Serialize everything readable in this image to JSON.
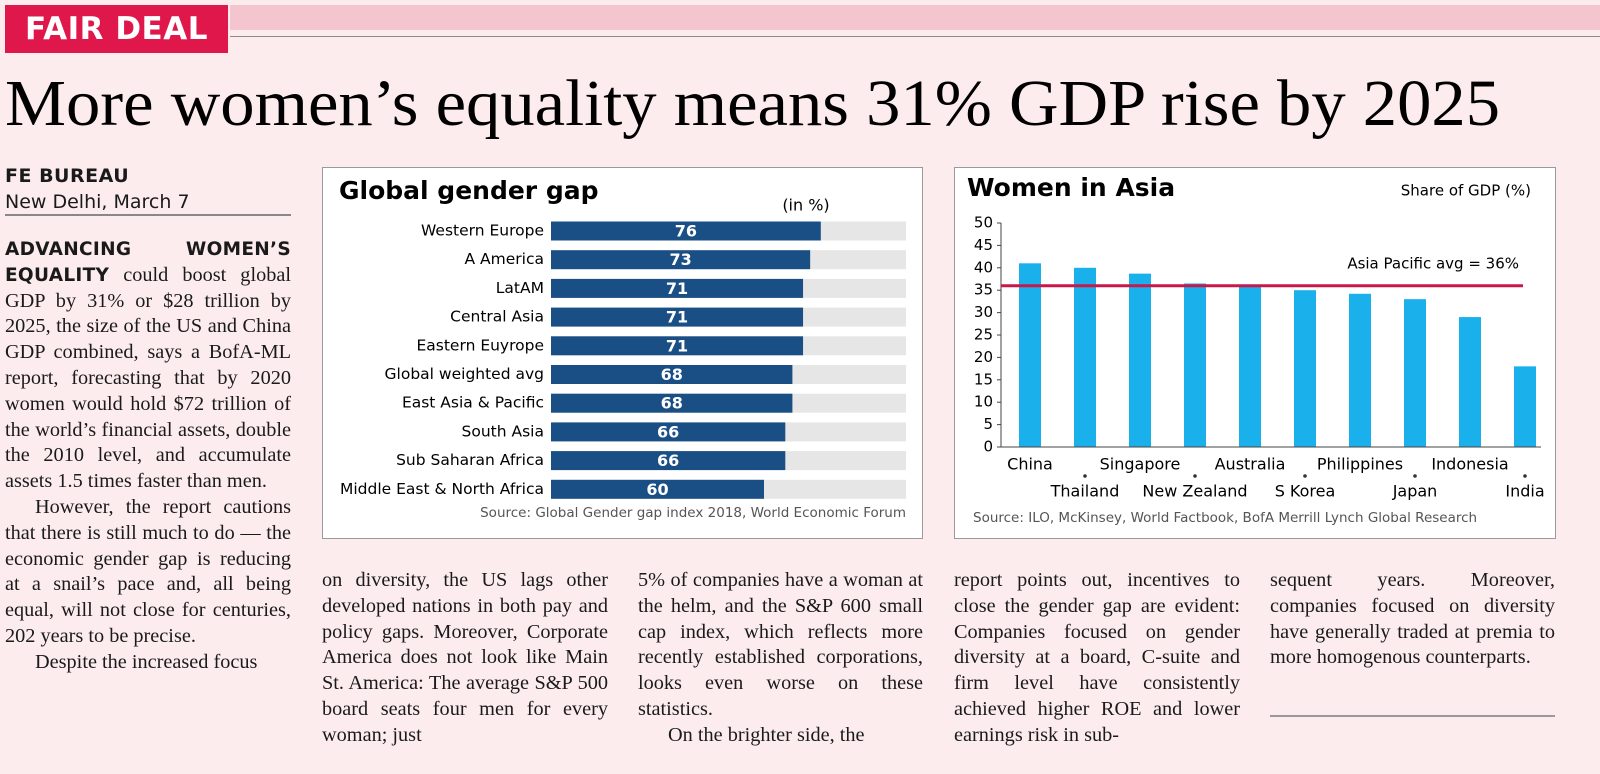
{
  "section": "FAIR DEAL",
  "headline": "More women’s equality means 31% GDP rise by 2025",
  "byline": {
    "author": "FE BUREAU",
    "dateline": "New Delhi, March 7"
  },
  "article": {
    "columns": [
      {
        "lead": "ADVANCING WOMEN’S EQUALITY",
        "paragraphs": [
          "could boost global GDP by 31% or $28 trillion by 2025, the size of the US and China GDP combined, says a BofA-ML report, forecasting that by 2020 women would hold $72 trillion of the world’s financial assets, double the 2010 level, and accumulate assets 1.5 times faster than men.",
          "However, the report cautions that there is still much to do — the economic gender gap is reducing at a snail’s pace and, all being equal, will not close for centuries, 202 years to be precise.",
          "Despite the increased focus"
        ]
      },
      {
        "paragraphs": [
          "on diversity, the US lags other developed nations in both pay and policy gaps. Moreover, Corporate America does not look like Main St. America: The average S&P 500 board seats four men for every woman; just"
        ]
      },
      {
        "paragraphs": [
          "5% of companies have a woman at the helm, and the S&P 600 small cap index, which reflects more recently established corporations, looks even worse on these statistics.",
          "On the brighter side, the"
        ]
      },
      {
        "paragraphs": [
          "report points out, incentives to close the gender gap are evident: Companies focused on gender diversity at a board, C-suite and firm level have consistently achieved higher ROE and lower earnings risk in sub-"
        ]
      },
      {
        "paragraphs": [
          "sequent years. Moreover, companies focused on diversity have generally traded at premia to more homogenous counterparts."
        ]
      }
    ]
  },
  "chart_data": [
    {
      "type": "bar",
      "orientation": "horizontal",
      "title": "Global gender gap",
      "subtitle": "(in %)",
      "categories": [
        "Western Europe",
        "A America",
        "LatAM",
        "Central Asia",
        "Eastern Euyrope",
        "Global weighted avg",
        "East Asia & Pacific",
        "South Asia",
        "Sub Saharan Africa",
        "Middle East & North Africa"
      ],
      "values": [
        76,
        73,
        71,
        71,
        71,
        68,
        68,
        66,
        66,
        60
      ],
      "color": "#1a4f86",
      "track_color": "#e6e6e6",
      "xlim": [
        0,
        100
      ],
      "source": "Source: Global Gender gap index 2018, World Economic Forum"
    },
    {
      "type": "bar",
      "orientation": "vertical",
      "title": "Women in Asia",
      "y_label": "Share of GDP (%)",
      "categories": [
        "China",
        "Thailand",
        "Singapore",
        "New Zealand",
        "Australia",
        "S Korea",
        "Philippines",
        "Japan",
        "Indonesia",
        "India"
      ],
      "values": [
        41,
        40,
        38.7,
        36.5,
        35.8,
        35,
        34.2,
        33,
        29,
        18
      ],
      "color": "#1ab0ec",
      "ylim": [
        0,
        50
      ],
      "yticks": [
        0,
        5,
        10,
        15,
        20,
        25,
        30,
        35,
        40,
        45,
        50
      ],
      "reference": {
        "value": 36,
        "label": "Asia Pacific avg = 36%",
        "color": "#c8184a"
      },
      "source": "Source: ILO, McKinsey, World Factbook, BofA Merrill Lynch Global Research"
    }
  ]
}
